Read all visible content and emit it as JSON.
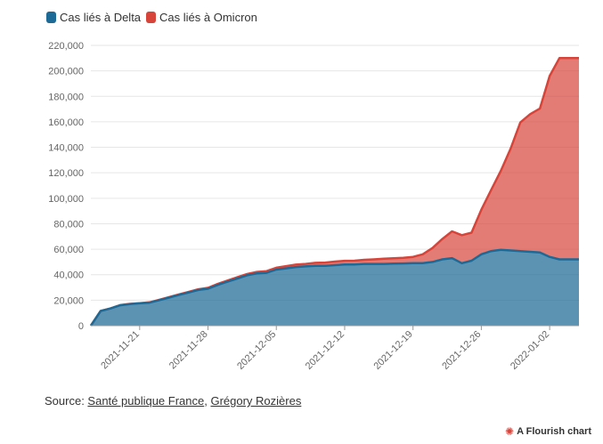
{
  "colors": {
    "delta": "#1d6a96",
    "omicron": "#d6443a"
  },
  "legend": {
    "delta_label": "Cas liés à Delta",
    "omicron_label": "Cas liés à Omicron"
  },
  "source": {
    "prefix": "Source: ",
    "link1": "Santé publique France",
    "separator": ", ",
    "link2": "Grégory Rozières"
  },
  "credit": {
    "icon": "flourish-icon",
    "label": "A Flourish chart"
  },
  "chart_data": {
    "type": "area",
    "stacked": true,
    "title": "",
    "xlabel": "",
    "ylabel": "",
    "ylim": [
      0,
      220000
    ],
    "yticks": [
      0,
      20000,
      40000,
      60000,
      80000,
      100000,
      120000,
      140000,
      160000,
      180000,
      200000,
      220000
    ],
    "ytick_labels": [
      "0",
      "20,000",
      "40,000",
      "60,000",
      "80,000",
      "100,000",
      "120,000",
      "140,000",
      "160,000",
      "180,000",
      "200,000",
      "220,000"
    ],
    "xlim": [
      "2021-11-16",
      "2022-01-05"
    ],
    "xticks": [
      "2021-11-21",
      "2021-11-28",
      "2021-12-05",
      "2021-12-12",
      "2021-12-19",
      "2021-12-26",
      "2022-01-02"
    ],
    "grid": true,
    "legend_position": "top-left",
    "x": [
      "2021-11-16",
      "2021-11-17",
      "2021-11-18",
      "2021-11-19",
      "2021-11-20",
      "2021-11-21",
      "2021-11-22",
      "2021-11-23",
      "2021-11-24",
      "2021-11-25",
      "2021-11-26",
      "2021-11-27",
      "2021-11-28",
      "2021-11-29",
      "2021-11-30",
      "2021-12-01",
      "2021-12-02",
      "2021-12-03",
      "2021-12-04",
      "2021-12-05",
      "2021-12-06",
      "2021-12-07",
      "2021-12-08",
      "2021-12-09",
      "2021-12-10",
      "2021-12-11",
      "2021-12-12",
      "2021-12-13",
      "2021-12-14",
      "2021-12-15",
      "2021-12-16",
      "2021-12-17",
      "2021-12-18",
      "2021-12-19",
      "2021-12-20",
      "2021-12-21",
      "2021-12-22",
      "2021-12-23",
      "2021-12-24",
      "2021-12-25",
      "2021-12-26",
      "2021-12-27",
      "2021-12-28",
      "2021-12-29",
      "2021-12-30",
      "2021-12-31",
      "2022-01-01",
      "2022-01-02",
      "2022-01-03",
      "2022-01-04",
      "2022-01-05"
    ],
    "series": [
      {
        "name": "Cas liés à Delta",
        "values": [
          0,
          11500,
          13500,
          16000,
          17000,
          17500,
          18000,
          20000,
          22000,
          24000,
          26000,
          28000,
          29000,
          32000,
          34500,
          37000,
          39500,
          41000,
          41500,
          44000,
          45000,
          46000,
          46500,
          47000,
          47000,
          47500,
          48000,
          48000,
          48500,
          48500,
          48500,
          48700,
          48800,
          49000,
          49000,
          50000,
          52000,
          53000,
          49000,
          51000,
          56000,
          58500,
          59500,
          59000,
          58500,
          58000,
          57500,
          54000,
          52000,
          52000,
          52000
        ]
      },
      {
        "name": "Cas liés à Omicron",
        "values": [
          0,
          0,
          0,
          100,
          100,
          200,
          300,
          300,
          400,
          500,
          500,
          600,
          700,
          800,
          900,
          1000,
          1000,
          1200,
          1300,
          1500,
          1700,
          1900,
          2000,
          2300,
          2500,
          2800,
          2900,
          3000,
          3200,
          3500,
          4000,
          4200,
          4500,
          5000,
          7000,
          11000,
          16000,
          21000,
          22000,
          22000,
          35000,
          48000,
          62000,
          80000,
          101000,
          108000,
          113000,
          142000,
          158000,
          158000,
          158000
        ]
      }
    ]
  }
}
